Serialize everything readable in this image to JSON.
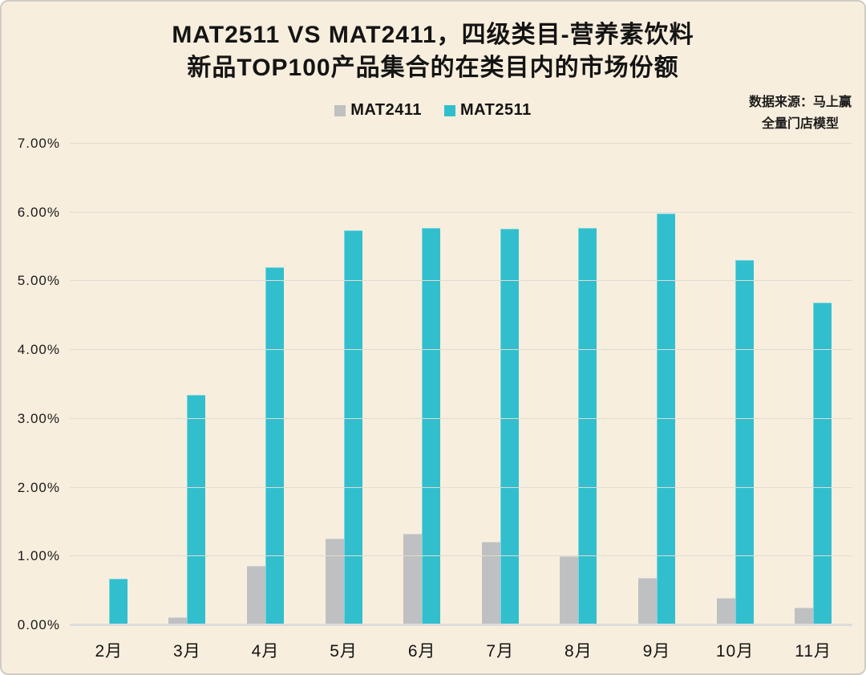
{
  "title": {
    "line1": "MAT2511 VS MAT2411，四级类目-营养素饮料",
    "line2": "新品TOP100产品集合的在类目内的市场份额"
  },
  "source": {
    "line1": "数据来源：马上赢",
    "line2": "全量门店模型"
  },
  "legend": [
    {
      "label": "MAT2411",
      "color": "#bfc0c1"
    },
    {
      "label": "MAT2511",
      "color": "#31bfce"
    }
  ],
  "colors": {
    "background": "#f8eedd",
    "bar_gray": "#bfc0c1",
    "bar_teal": "#31bfce",
    "gridline": "#e1dcd3",
    "baseline": "#dcdcdc",
    "text": "#141414"
  },
  "chart_data": {
    "type": "bar",
    "title": "MAT2511 VS MAT2411，四级类目-营养素饮料 新品TOP100产品集合的在类目内的市场份额",
    "categories": [
      "2月",
      "3月",
      "4月",
      "5月",
      "6月",
      "7月",
      "8月",
      "9月",
      "10月",
      "11月"
    ],
    "series": [
      {
        "name": "MAT2411",
        "color": "#bfc0c1",
        "values": [
          0,
          0.12,
          0.86,
          1.26,
          1.33,
          1.21,
          1.0,
          0.69,
          0.4,
          0.26
        ]
      },
      {
        "name": "MAT2511",
        "color": "#31bfce",
        "values": [
          0.68,
          3.35,
          5.2,
          5.74,
          5.78,
          5.76,
          5.77,
          5.99,
          5.31,
          4.69
        ]
      }
    ],
    "unit": "percent",
    "xlabel": "",
    "ylabel": "",
    "ylim": [
      0,
      7
    ],
    "yticks": [
      "0.00%",
      "1.00%",
      "2.00%",
      "3.00%",
      "4.00%",
      "5.00%",
      "6.00%",
      "7.00%"
    ],
    "grid": true,
    "legend_position": "top-center",
    "annotation": "数据来源：马上赢 全量门店模型"
  }
}
